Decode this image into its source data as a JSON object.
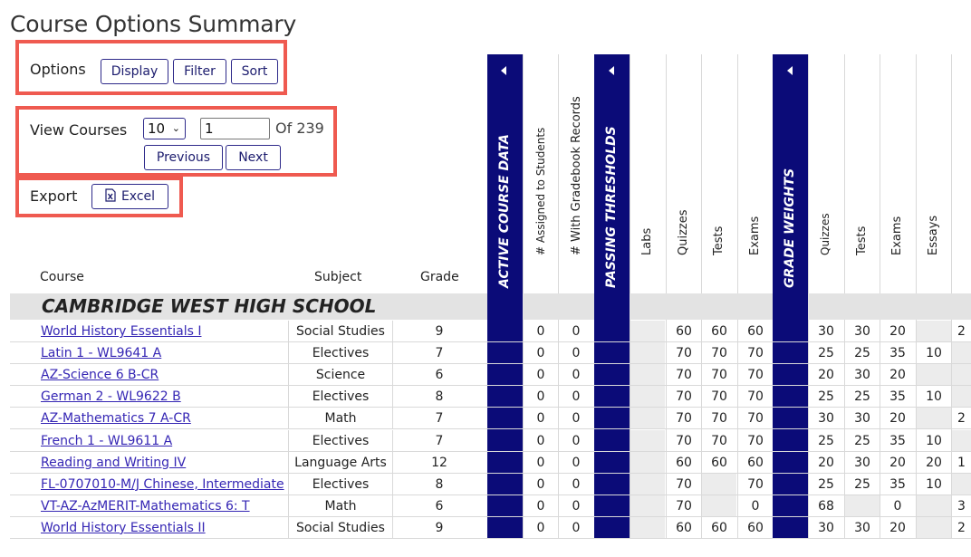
{
  "title": "Course Options Summary",
  "options": {
    "label": "Options",
    "display": "Display",
    "filter": "Filter",
    "sort": "Sort"
  },
  "view": {
    "label": "View Courses",
    "page_size": "10",
    "page_value": "1",
    "of_text": "Of 239",
    "previous": "Previous",
    "next": "Next"
  },
  "export": {
    "label": "Export",
    "excel": "Excel"
  },
  "columns": {
    "course": "Course",
    "subject": "Subject",
    "grade": "Grade",
    "active": "ACTIVE COURSE DATA",
    "assigned": "# Assigned to Students",
    "gradebook": "# With Gradebook Records",
    "passing": "PASSING THRESHOLDS",
    "labs": "Labs",
    "quizzes": "Quizzes",
    "tests": "Tests",
    "exams": "Exams",
    "weights": "GRADE WEIGHTS",
    "w_quizzes": "Quizzes",
    "w_tests": "Tests",
    "w_exams": "Exams",
    "w_essays": "Essays"
  },
  "school": "CAMBRIDGE WEST HIGH SCHOOL",
  "rows": [
    {
      "course": "World History Essentials I",
      "subject": "Social Studies",
      "grade": "9",
      "assigned": "0",
      "gradebook": "0",
      "p_labs": "",
      "p_quizzes": "60",
      "p_tests": "60",
      "p_exams": "60",
      "w_quizzes": "30",
      "w_tests": "30",
      "w_exams": "20",
      "w_essays": "",
      "extra": "2"
    },
    {
      "course": "Latin 1 - WL9641 A",
      "subject": "Electives",
      "grade": "7",
      "assigned": "0",
      "gradebook": "0",
      "p_labs": "",
      "p_quizzes": "70",
      "p_tests": "70",
      "p_exams": "70",
      "w_quizzes": "25",
      "w_tests": "25",
      "w_exams": "35",
      "w_essays": "10",
      "extra": ""
    },
    {
      "course": "AZ-Science 6 B-CR",
      "subject": "Science",
      "grade": "6",
      "assigned": "0",
      "gradebook": "0",
      "p_labs": "",
      "p_quizzes": "70",
      "p_tests": "70",
      "p_exams": "70",
      "w_quizzes": "20",
      "w_tests": "30",
      "w_exams": "20",
      "w_essays": "",
      "extra": ""
    },
    {
      "course": "German 2 - WL9622 B",
      "subject": "Electives",
      "grade": "8",
      "assigned": "0",
      "gradebook": "0",
      "p_labs": "",
      "p_quizzes": "70",
      "p_tests": "70",
      "p_exams": "70",
      "w_quizzes": "25",
      "w_tests": "25",
      "w_exams": "35",
      "w_essays": "10",
      "extra": ""
    },
    {
      "course": "AZ-Mathematics 7 A-CR",
      "subject": "Math",
      "grade": "7",
      "assigned": "0",
      "gradebook": "0",
      "p_labs": "",
      "p_quizzes": "70",
      "p_tests": "70",
      "p_exams": "70",
      "w_quizzes": "30",
      "w_tests": "30",
      "w_exams": "20",
      "w_essays": "",
      "extra": "2"
    },
    {
      "course": "French 1 - WL9611 A",
      "subject": "Electives",
      "grade": "7",
      "assigned": "0",
      "gradebook": "0",
      "p_labs": "",
      "p_quizzes": "70",
      "p_tests": "70",
      "p_exams": "70",
      "w_quizzes": "25",
      "w_tests": "25",
      "w_exams": "35",
      "w_essays": "10",
      "extra": ""
    },
    {
      "course": "Reading and Writing IV",
      "subject": "Language Arts",
      "grade": "12",
      "assigned": "0",
      "gradebook": "0",
      "p_labs": "",
      "p_quizzes": "60",
      "p_tests": "60",
      "p_exams": "60",
      "w_quizzes": "20",
      "w_tests": "30",
      "w_exams": "20",
      "w_essays": "20",
      "extra": "1"
    },
    {
      "course": "FL-0707010-M/J Chinese, Intermediate",
      "subject": "Electives",
      "grade": "8",
      "assigned": "0",
      "gradebook": "0",
      "p_labs": "",
      "p_quizzes": "70",
      "p_tests": "",
      "p_exams": "70",
      "w_quizzes": "25",
      "w_tests": "25",
      "w_exams": "35",
      "w_essays": "10",
      "extra": ""
    },
    {
      "course": "VT-AZ-AzMERIT-Mathematics 6: T",
      "subject": "Math",
      "grade": "6",
      "assigned": "0",
      "gradebook": "0",
      "p_labs": "",
      "p_quizzes": "70",
      "p_tests": "",
      "p_exams": "0",
      "w_quizzes": "68",
      "w_tests": "",
      "w_exams": "0",
      "w_essays": "",
      "extra": "3"
    },
    {
      "course": "World History Essentials II",
      "subject": "Social Studies",
      "grade": "9",
      "assigned": "0",
      "gradebook": "0",
      "p_labs": "",
      "p_quizzes": "60",
      "p_tests": "60",
      "p_exams": "60",
      "w_quizzes": "30",
      "w_tests": "30",
      "w_exams": "20",
      "w_essays": "",
      "extra": "2"
    }
  ],
  "colors": {
    "navy": "#0b0b78",
    "highlight": "#ef5a50",
    "link": "#3526b4",
    "button_border": "#2e2a8a"
  },
  "icons": {
    "collapse": "triangle-left-icon",
    "excel": "excel-file-icon",
    "dropdown": "chevron-down-icon"
  }
}
